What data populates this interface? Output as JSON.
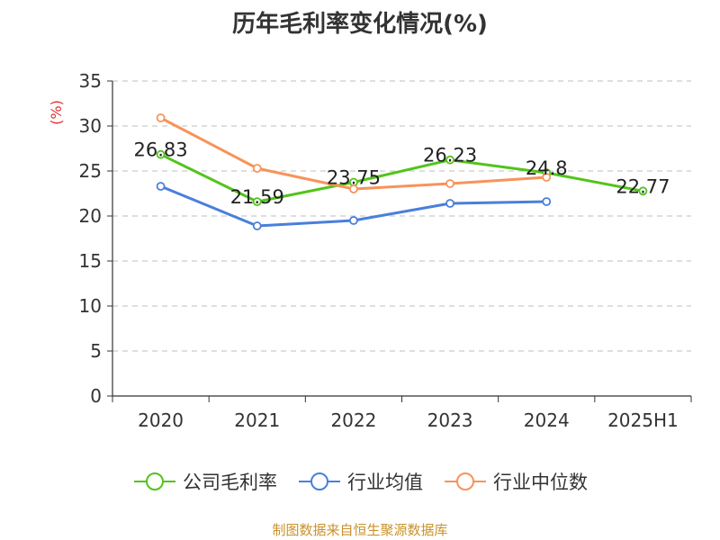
{
  "chart_data": {
    "type": "line",
    "title": "历年毛利率变化情况(%)",
    "ylabel": "(%)",
    "xlabel": "",
    "categories": [
      "2020",
      "2021",
      "2022",
      "2023",
      "2024",
      "2025H1"
    ],
    "ylim": [
      0,
      35
    ],
    "yticks": [
      0,
      5,
      10,
      15,
      20,
      25,
      30,
      35
    ],
    "grid": true,
    "legend_position": "bottom",
    "series": [
      {
        "name": "公司毛利率",
        "color": "#52c41a",
        "values": [
          26.83,
          21.59,
          23.75,
          26.23,
          24.8,
          22.77
        ],
        "labels": [
          "26.83",
          "21.59",
          "23.75",
          "26.23",
          "24.8",
          "22.77"
        ],
        "show_labels": true
      },
      {
        "name": "行业均值",
        "color": "#4a7fdb",
        "values": [
          23.3,
          18.9,
          19.5,
          21.4,
          21.6,
          null
        ],
        "show_labels": false
      },
      {
        "name": "行业中位数",
        "color": "#f7935a",
        "values": [
          30.9,
          25.3,
          23.0,
          23.6,
          24.3,
          null
        ],
        "show_labels": false
      }
    ]
  },
  "footer": {
    "source": "制图数据来自恒生聚源数据库"
  }
}
